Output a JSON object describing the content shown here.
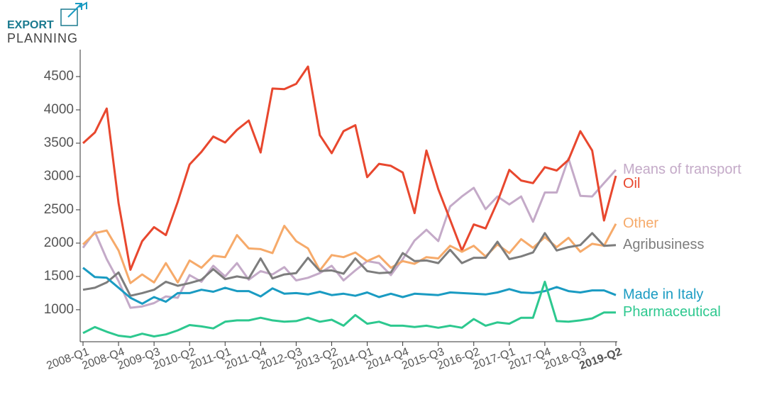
{
  "logo": {
    "top": "EXPORT",
    "bottom": "PLANNING"
  },
  "chart_data": {
    "type": "line",
    "categories": [
      "2008-Q1",
      null,
      null,
      "2008-Q4",
      null,
      null,
      "2009-Q3",
      null,
      null,
      "2010-Q2",
      null,
      null,
      "2011-Q1",
      null,
      null,
      "2011-Q4",
      null,
      null,
      "2012-Q3",
      null,
      null,
      "2013-Q2",
      null,
      null,
      "2014-Q1",
      null,
      null,
      "2014-Q4",
      null,
      null,
      "2015-Q3",
      null,
      null,
      "2016-Q2",
      null,
      null,
      "2017-Q1",
      null,
      null,
      "2017-Q4",
      null,
      null,
      "2018-Q3",
      null,
      null,
      "2019-Q2"
    ],
    "ylim": [
      520,
      4900
    ],
    "yticks": [
      1000,
      1500,
      2000,
      2500,
      3000,
      3500,
      4000,
      4500
    ],
    "series": [
      {
        "name": "Means of transport",
        "color": "#c4aac8",
        "values": [
          1930,
          2170,
          1760,
          1430,
          1030,
          1050,
          1100,
          1200,
          1180,
          1520,
          1420,
          1660,
          1500,
          1700,
          1450,
          1580,
          1530,
          1640,
          1440,
          1480,
          1550,
          1660,
          1440,
          1590,
          1730,
          1700,
          1520,
          1760,
          2040,
          2200,
          2030,
          2550,
          2700,
          2830,
          2510,
          2700,
          2580,
          2700,
          2320,
          2760,
          2760,
          3270,
          2710,
          2700,
          2900,
          3100
        ]
      },
      {
        "name": "Oil",
        "color": "#e8472e",
        "values": [
          3500,
          3660,
          4020,
          2600,
          1600,
          2030,
          2240,
          2120,
          2620,
          3180,
          3370,
          3600,
          3510,
          3700,
          3840,
          3360,
          4320,
          4310,
          4390,
          4650,
          3620,
          3350,
          3680,
          3770,
          2990,
          3190,
          3160,
          3060,
          2450,
          3390,
          2810,
          2350,
          1890,
          2280,
          2220,
          2620,
          3100,
          2940,
          2900,
          3140,
          3090,
          3250,
          3680,
          3390,
          2340,
          3010
        ]
      },
      {
        "name": "Other",
        "color": "#f6aa6a",
        "values": [
          1980,
          2150,
          2190,
          1890,
          1400,
          1530,
          1410,
          1700,
          1410,
          1740,
          1630,
          1810,
          1790,
          2120,
          1920,
          1910,
          1850,
          2260,
          2030,
          1920,
          1590,
          1820,
          1790,
          1860,
          1730,
          1810,
          1630,
          1730,
          1690,
          1790,
          1770,
          1960,
          1870,
          1960,
          1800,
          1980,
          1850,
          2060,
          1930,
          2090,
          1940,
          2080,
          1870,
          1990,
          1960,
          2290
        ]
      },
      {
        "name": "Agribusiness",
        "color": "#7d7d7d",
        "values": [
          1300,
          1330,
          1410,
          1560,
          1210,
          1250,
          1300,
          1420,
          1360,
          1400,
          1450,
          1610,
          1460,
          1500,
          1470,
          1770,
          1470,
          1530,
          1550,
          1780,
          1580,
          1590,
          1540,
          1770,
          1580,
          1550,
          1560,
          1850,
          1730,
          1740,
          1700,
          1900,
          1700,
          1780,
          1780,
          2020,
          1760,
          1800,
          1860,
          2150,
          1890,
          1940,
          1970,
          2150,
          1960,
          1970
        ]
      },
      {
        "name": "Made in Italy",
        "color": "#1a9bc2",
        "values": [
          1630,
          1490,
          1480,
          1330,
          1180,
          1090,
          1190,
          1120,
          1250,
          1250,
          1300,
          1270,
          1330,
          1280,
          1280,
          1200,
          1320,
          1240,
          1250,
          1230,
          1270,
          1220,
          1240,
          1210,
          1260,
          1190,
          1240,
          1190,
          1240,
          1230,
          1220,
          1260,
          1250,
          1240,
          1230,
          1260,
          1310,
          1260,
          1250,
          1280,
          1340,
          1280,
          1260,
          1290,
          1290,
          1220
        ]
      },
      {
        "name": "Pharmaceutical",
        "color": "#2dc88f",
        "values": [
          650,
          740,
          670,
          610,
          590,
          640,
          600,
          630,
          690,
          770,
          750,
          720,
          820,
          840,
          840,
          880,
          840,
          820,
          830,
          880,
          820,
          850,
          760,
          920,
          790,
          820,
          760,
          760,
          740,
          760,
          730,
          760,
          730,
          860,
          760,
          810,
          790,
          880,
          880,
          1420,
          830,
          820,
          840,
          870,
          960,
          960
        ]
      }
    ]
  }
}
